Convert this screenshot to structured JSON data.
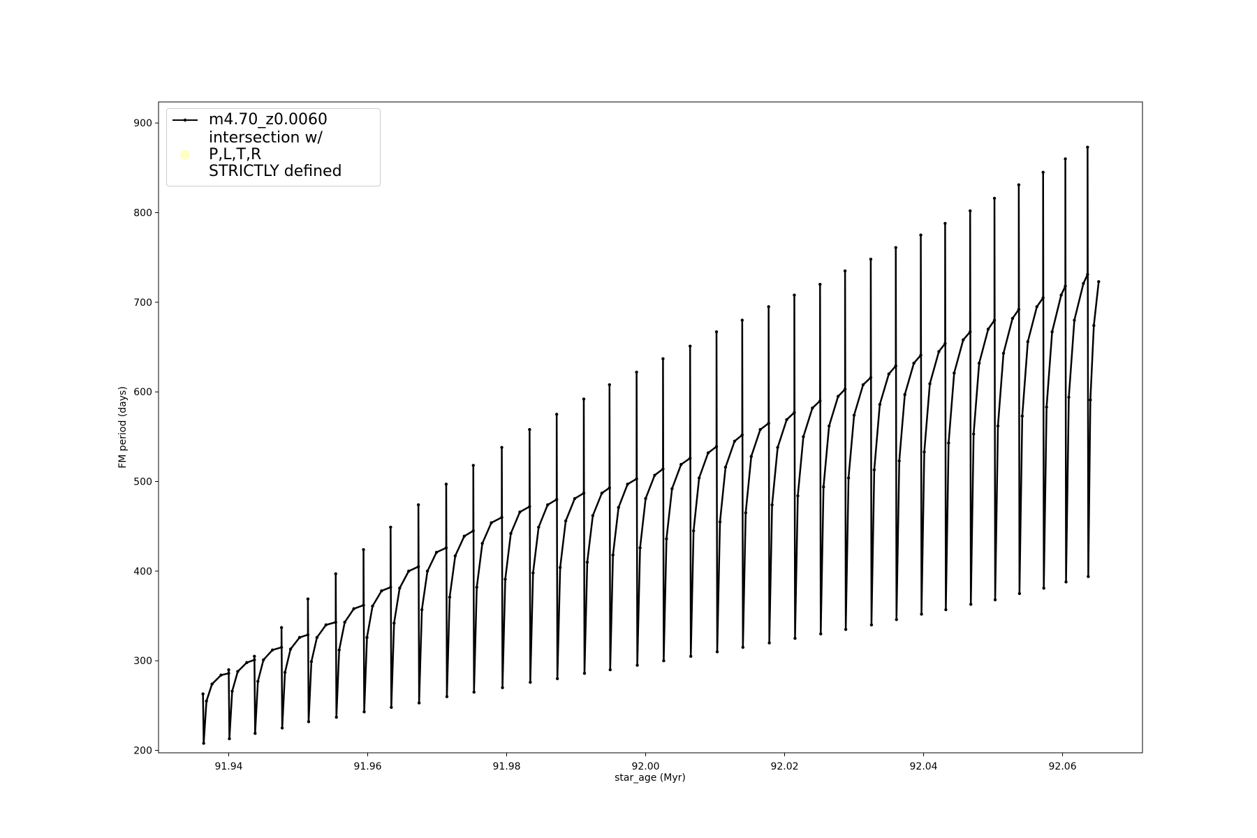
{
  "chart_data": {
    "type": "line",
    "xlabel": "star_age (Myr)",
    "ylabel": "FM period (days)",
    "xlim": [
      91.9299,
      92.0715
    ],
    "ylim": [
      197.3,
      923.5
    ],
    "xticks": [
      91.94,
      91.96,
      91.98,
      {
        "value": 92.0,
        "label": "92.00"
      },
      92.02,
      92.04,
      92.06
    ],
    "yticks": [
      200,
      300,
      400,
      500,
      600,
      700,
      800,
      900
    ],
    "legend": "upper left",
    "series": [
      {
        "name": "m4.70_z0.0060",
        "color": "#000000",
        "style": "line",
        "x": [
          91.9363,
          91.9364,
          91.9368,
          91.9376,
          91.9389,
          91.94,
          91.94,
          91.9401,
          91.9405,
          91.9413,
          91.9426,
          91.9437,
          91.9437,
          91.9438,
          91.9442,
          91.945,
          91.9463,
          91.9476,
          91.9476,
          91.9477,
          91.9481,
          91.9489,
          91.9502,
          91.9514,
          91.9514,
          91.9515,
          91.9519,
          91.9527,
          91.954,
          91.9554,
          91.9554,
          91.9555,
          91.9559,
          91.9567,
          91.958,
          91.9594,
          91.9594,
          91.9595,
          91.9599,
          91.9607,
          91.962,
          91.9633,
          91.9633,
          91.9634,
          91.9638,
          91.9646,
          91.9659,
          91.9673,
          91.9673,
          91.9674,
          91.9678,
          91.9686,
          91.9699,
          91.9713,
          91.9713,
          91.9714,
          91.9718,
          91.9726,
          91.9739,
          91.9752,
          91.9752,
          91.9753,
          91.9757,
          91.9765,
          91.9778,
          91.9793,
          91.9793,
          91.9794,
          91.9798,
          91.9806,
          91.9819,
          91.9833,
          91.9833,
          91.9834,
          91.9838,
          91.9846,
          91.9859,
          91.9872,
          91.9872,
          91.9873,
          91.9877,
          91.9885,
          91.9898,
          91.9911,
          91.9911,
          91.9912,
          91.9916,
          91.9924,
          91.9937,
          91.9948,
          91.9948,
          91.9949,
          91.9953,
          91.9961,
          91.9974,
          91.9987,
          91.9987,
          91.9988,
          91.9992,
          92.0,
          92.0013,
          92.0025,
          92.0025,
          92.0026,
          92.003,
          92.0038,
          92.0051,
          92.0064,
          92.0064,
          92.0065,
          92.0069,
          92.0077,
          92.009,
          92.0102,
          92.0102,
          92.0103,
          92.0107,
          92.0115,
          92.0128,
          92.0139,
          92.0139,
          92.014,
          92.0144,
          92.0152,
          92.0165,
          92.0177,
          92.0177,
          92.0178,
          92.0182,
          92.019,
          92.0203,
          92.0214,
          92.0214,
          92.0215,
          92.0219,
          92.0227,
          92.024,
          92.0251,
          92.0251,
          92.0252,
          92.0256,
          92.0264,
          92.0277,
          92.0287,
          92.0287,
          92.0288,
          92.0292,
          92.03,
          92.0313,
          92.0324,
          92.0324,
          92.0325,
          92.0329,
          92.0337,
          92.035,
          92.036,
          92.036,
          92.0361,
          92.0365,
          92.0373,
          92.0386,
          92.0396,
          92.0396,
          92.0397,
          92.0401,
          92.0409,
          92.0422,
          92.0431,
          92.0431,
          92.0432,
          92.0436,
          92.0444,
          92.0457,
          92.0467,
          92.0467,
          92.0468,
          92.0472,
          92.048,
          92.0493,
          92.0502,
          92.0502,
          92.0503,
          92.0507,
          92.0515,
          92.0528,
          92.0537,
          92.0537,
          92.0538,
          92.0542,
          92.055,
          92.0563,
          92.0572,
          92.0572,
          92.0573,
          92.0577,
          92.0585,
          92.0598,
          92.0604,
          92.0604,
          92.0605,
          92.0609,
          92.0617,
          92.063,
          92.0636,
          92.0636,
          92.0637,
          92.064,
          92.0645,
          92.0652
        ],
        "values": [
          263,
          208,
          255,
          274,
          284,
          286,
          290,
          213,
          266,
          288,
          298,
          301,
          305,
          219,
          277,
          301,
          312,
          315,
          337,
          225,
          287,
          313,
          326,
          329,
          369,
          232,
          299,
          326,
          340,
          343,
          397,
          237,
          312,
          343,
          358,
          362,
          424,
          243,
          326,
          361,
          378,
          382,
          449,
          248,
          342,
          381,
          400,
          405,
          474,
          253,
          357,
          400,
          421,
          426,
          497,
          260,
          371,
          417,
          439,
          445,
          518,
          265,
          382,
          431,
          454,
          460,
          538,
          270,
          391,
          442,
          466,
          472,
          558,
          276,
          398,
          449,
          474,
          480,
          575,
          280,
          404,
          456,
          481,
          487,
          592,
          286,
          410,
          462,
          487,
          493,
          608,
          290,
          418,
          471,
          497,
          503,
          622,
          295,
          426,
          481,
          507,
          514,
          637,
          300,
          436,
          492,
          519,
          526,
          651,
          305,
          445,
          504,
          532,
          539,
          667,
          310,
          455,
          516,
          545,
          552,
          680,
          315,
          465,
          528,
          558,
          565,
          695,
          320,
          474,
          538,
          569,
          577,
          708,
          325,
          484,
          550,
          582,
          590,
          720,
          330,
          494,
          562,
          595,
          603,
          735,
          335,
          504,
          574,
          608,
          616,
          748,
          340,
          513,
          586,
          620,
          629,
          761,
          346,
          523,
          597,
          632,
          641,
          775,
          352,
          533,
          609,
          645,
          654,
          788,
          357,
          543,
          621,
          658,
          667,
          802,
          363,
          553,
          632,
          670,
          680,
          816,
          368,
          562,
          643,
          682,
          692,
          831,
          375,
          573,
          656,
          695,
          705,
          845,
          381,
          583,
          667,
          708,
          718,
          860,
          388,
          594,
          680,
          721,
          731,
          873,
          394,
          591,
          674,
          723
        ]
      },
      {
        "name": "intersection w/ P,L,T,R\nSTRICTLY defined",
        "color": "#ffffa0",
        "style": "scatter",
        "x": [],
        "values": []
      }
    ]
  }
}
